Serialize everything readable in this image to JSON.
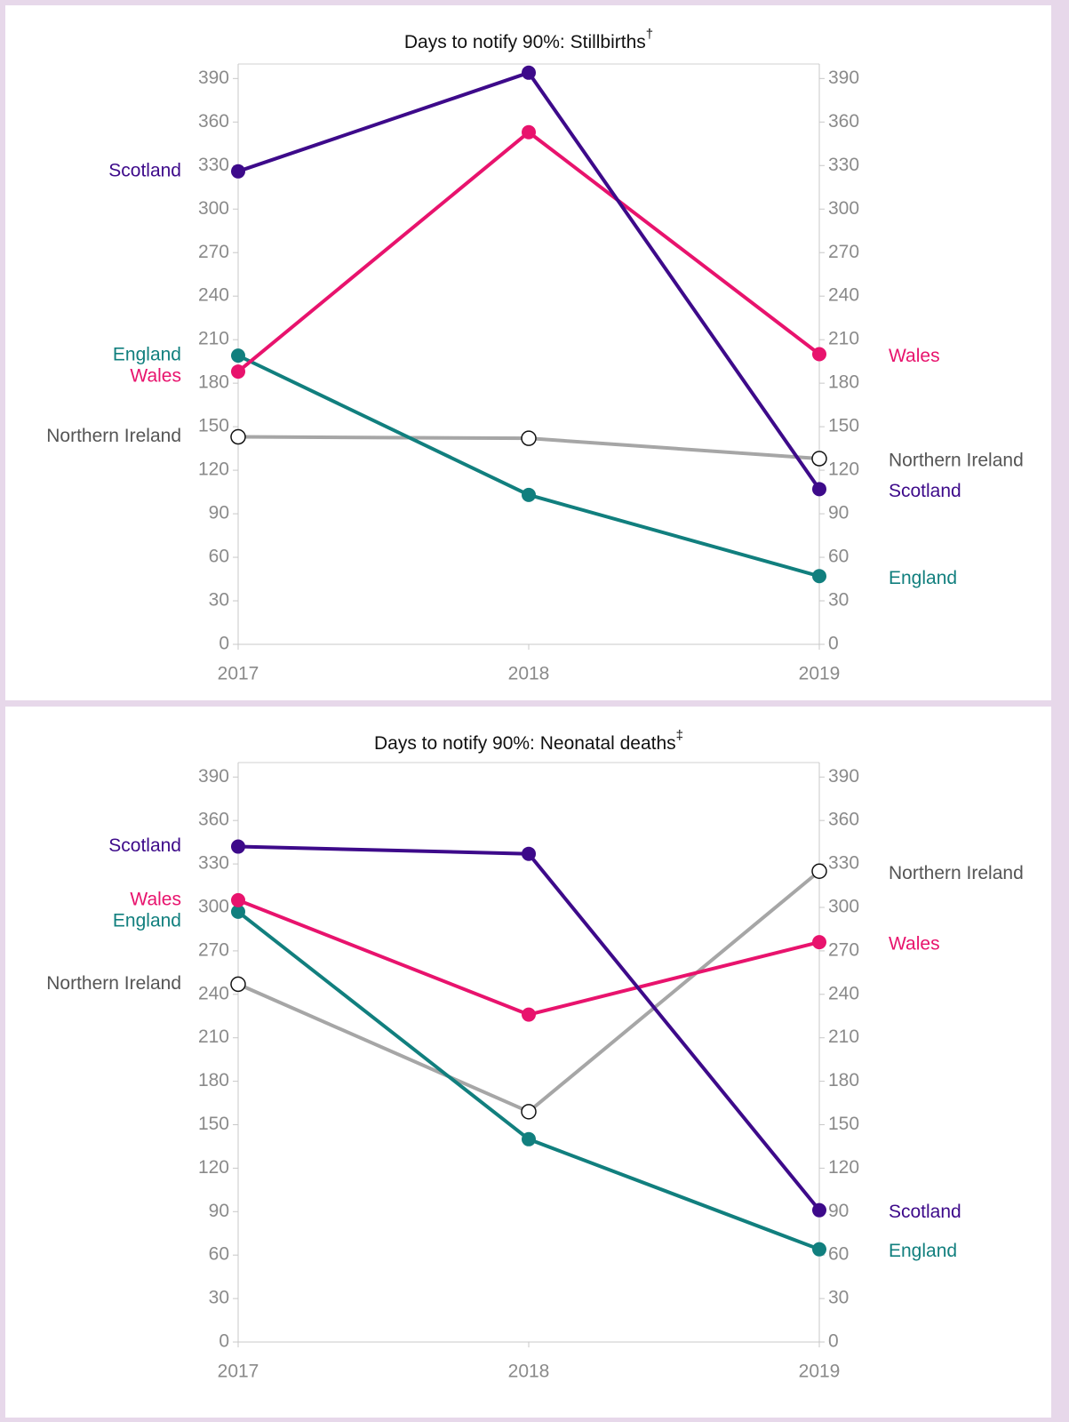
{
  "chart_data": [
    {
      "type": "line",
      "title": "Days to notify 90%: Stillbirths",
      "title_note": "†",
      "categories": [
        "2017",
        "2018",
        "2019"
      ],
      "series": [
        {
          "name": "Northern Ireland",
          "color": "#a6a6a6",
          "values": [
            143,
            142,
            128
          ]
        },
        {
          "name": "England",
          "color": "#117f7e",
          "values": [
            199,
            103,
            47
          ]
        },
        {
          "name": "Wales",
          "color": "#e8136d",
          "values": [
            188,
            353,
            200
          ]
        },
        {
          "name": "Scotland",
          "color": "#3d0a8a",
          "values": [
            326,
            394,
            107
          ]
        }
      ],
      "ylim": [
        0,
        400
      ],
      "yticks": [
        0,
        30,
        60,
        90,
        120,
        150,
        180,
        210,
        240,
        270,
        300,
        330,
        360,
        390
      ]
    },
    {
      "type": "line",
      "title": "Days to notify 90%: Neonatal deaths",
      "title_note": "‡",
      "categories": [
        "2017",
        "2018",
        "2019"
      ],
      "series": [
        {
          "name": "Northern Ireland",
          "color": "#a6a6a6",
          "values": [
            247,
            159,
            325
          ]
        },
        {
          "name": "England",
          "color": "#117f7e",
          "values": [
            297,
            140,
            64
          ]
        },
        {
          "name": "Wales",
          "color": "#e8136d",
          "values": [
            305,
            226,
            276
          ]
        },
        {
          "name": "Scotland",
          "color": "#3d0a8a",
          "values": [
            342,
            337,
            91
          ]
        }
      ],
      "ylim": [
        0,
        400
      ],
      "yticks": [
        0,
        30,
        60,
        90,
        120,
        150,
        180,
        210,
        240,
        270,
        300,
        330,
        360,
        390
      ]
    }
  ]
}
